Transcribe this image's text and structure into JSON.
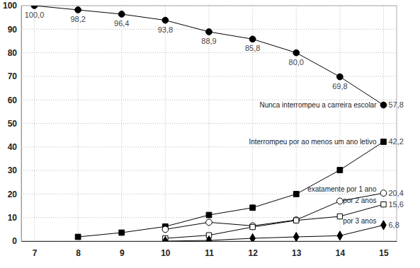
{
  "chart_data": {
    "type": "line",
    "x": [
      7,
      8,
      9,
      10,
      11,
      12,
      13,
      14,
      15
    ],
    "xlim": [
      6.7,
      15.3
    ],
    "xticks": [
      7,
      8,
      9,
      10,
      11,
      12,
      13,
      14,
      15
    ],
    "ylim": [
      0,
      100
    ],
    "yticks": [
      0,
      10,
      20,
      30,
      40,
      50,
      60,
      70,
      80,
      90,
      100
    ],
    "grid": true,
    "data_labels": true,
    "series": [
      {
        "name": "Nunca interrompeu a carreira escolar",
        "color": "#000000",
        "marker": "circle",
        "line_style": "solid",
        "values": [
          100.0,
          98.2,
          96.4,
          93.8,
          88.9,
          85.8,
          80.0,
          69.8,
          57.8
        ],
        "value_labels": [
          "100,0",
          "98,2",
          "96,4",
          "93,8",
          "88,9",
          "85,8",
          "80,0",
          "69,8",
          "57,8"
        ]
      },
      {
        "name": "Interrompeu por ao menos um ano letivo",
        "color": "#000000",
        "marker": "square",
        "line_style": "solid",
        "values": [
          null,
          1.8,
          3.6,
          6.2,
          11.1,
          14.2,
          20.0,
          30.2,
          42.2
        ],
        "value_labels": [
          null,
          null,
          null,
          null,
          null,
          null,
          null,
          null,
          "42,2"
        ]
      },
      {
        "name": "exatamente por 1 ano",
        "color": "#000000",
        "marker": "circle-open",
        "line_style": "solid",
        "values": [
          null,
          null,
          null,
          5.0,
          8.0,
          6.5,
          9.0,
          17.0,
          20.4
        ],
        "value_labels": [
          null,
          null,
          null,
          null,
          null,
          null,
          null,
          null,
          "20,4"
        ]
      },
      {
        "name": "por 2 anos",
        "color": "#000000",
        "marker": "square-open",
        "line_style": "solid",
        "values": [
          null,
          null,
          null,
          1.2,
          2.5,
          6.0,
          8.8,
          10.5,
          15.6
        ],
        "value_labels": [
          null,
          null,
          null,
          null,
          null,
          null,
          null,
          null,
          "15,6"
        ]
      },
      {
        "name": "por 3 anos",
        "color": "#000000",
        "marker": "diamond",
        "line_style": "solid",
        "values": [
          null,
          null,
          null,
          0,
          0.3,
          1.2,
          1.8,
          2.3,
          6.8
        ],
        "value_labels": [
          null,
          null,
          null,
          null,
          null,
          null,
          null,
          null,
          "6,8"
        ]
      }
    ]
  }
}
